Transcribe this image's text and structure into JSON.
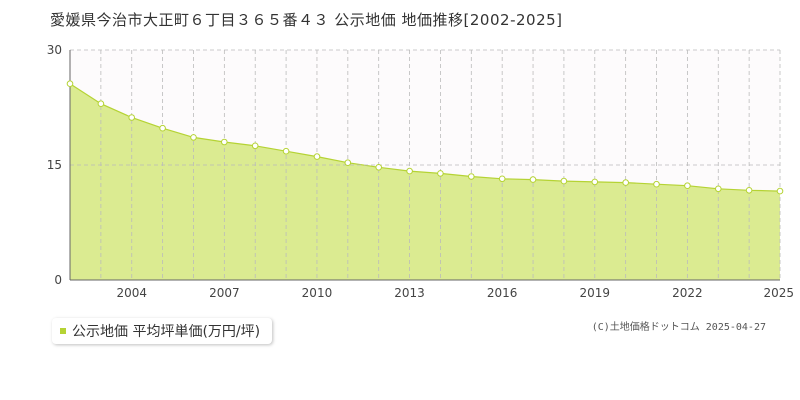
{
  "title": "愛媛県今治市大正町６丁目３６５番４３ 公示地価 地価推移[2002-2025]",
  "legend": {
    "label": "公示地価 平均坪単価(万円/坪)"
  },
  "copyright": "(C)土地価格ドットコム 2025-04-27",
  "colors": {
    "fill": "#dbeb91",
    "line": "#b5d334",
    "point": "#ffffff",
    "grid": "#bbbbbb",
    "axis": "#666666",
    "plot_bg_upper": "#fdfbfc"
  },
  "chart_data": {
    "type": "area",
    "title": "愛媛県今治市大正町６丁目３６５番４３ 公示地価 地価推移[2002-2025]",
    "xlabel": "",
    "ylabel": "",
    "x": [
      2002,
      2003,
      2004,
      2005,
      2006,
      2007,
      2008,
      2009,
      2010,
      2011,
      2012,
      2013,
      2014,
      2015,
      2016,
      2017,
      2018,
      2019,
      2020,
      2021,
      2022,
      2023,
      2024,
      2025
    ],
    "series": [
      {
        "name": "公示地価 平均坪単価(万円/坪)",
        "values": [
          25.6,
          23.0,
          21.2,
          19.8,
          18.6,
          18.0,
          17.5,
          16.8,
          16.1,
          15.3,
          14.7,
          14.2,
          13.9,
          13.5,
          13.2,
          13.1,
          12.9,
          12.8,
          12.7,
          12.5,
          12.3,
          11.9,
          11.7,
          11.6
        ]
      }
    ],
    "xlim": [
      2002,
      2025
    ],
    "ylim": [
      0,
      30
    ],
    "yticks": [
      0,
      15,
      30
    ],
    "xticks": [
      2004,
      2007,
      2010,
      2013,
      2016,
      2019,
      2022,
      2025
    ],
    "grid": true,
    "legend_position": "bottom-left"
  }
}
